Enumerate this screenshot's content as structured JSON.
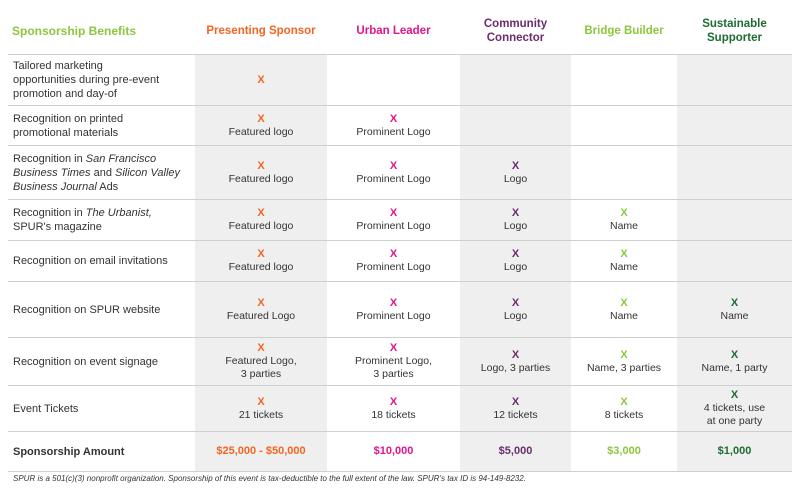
{
  "header": {
    "benefits": "Sponsorship Benefits",
    "presenting": "Presenting Sponsor",
    "urban": "Urban Leader",
    "community_line1": "Community",
    "community_line2": "Connector",
    "bridge": "Bridge Builder",
    "sustainable_line1": "Sustainable",
    "sustainable_line2": "Supporter"
  },
  "colors": {
    "benefits_header": "#8cc63f",
    "presenting": "#f26522",
    "urban": "#e0158a",
    "community": "#6b2c6e",
    "bridge": "#8cc63f",
    "sustainable": "#1e6b33",
    "shading": "#efefef"
  },
  "rows": {
    "marketing": {
      "line1": "Tailored marketing",
      "line2": "opportunities during pre-event",
      "line3": "promotion and day-of",
      "presenting_mark": "X"
    },
    "printed": {
      "line1": "Recognition on printed",
      "line2": "promotional materials",
      "presenting_mark": "X",
      "presenting_detail": "Featured logo",
      "urban_mark": "X",
      "urban_detail": "Prominent Logo"
    },
    "journal": {
      "line1_prefix": "Recognition in ",
      "line1_italic": "San Francisco",
      "line2_italic": "Business Times",
      "line2_suffix": " and ",
      "line2_italic2": "Silicon Valley",
      "line3_italic": "Business Journal",
      "line3_suffix": " Ads",
      "presenting_mark": "X",
      "presenting_detail": "Featured logo",
      "urban_mark": "X",
      "urban_detail": "Prominent Logo",
      "community_mark": "X",
      "community_detail": "Logo"
    },
    "urbanist": {
      "line1_prefix": "Recognition in ",
      "line1_italic": "The Urbanist,",
      "line2": "SPUR's magazine",
      "presenting_mark": "X",
      "presenting_detail": "Featured logo",
      "urban_mark": "X",
      "urban_detail": "Prominent Logo",
      "community_mark": "X",
      "community_detail": "Logo",
      "bridge_mark": "X",
      "bridge_detail": "Name"
    },
    "email": {
      "line1": "Recognition on email invitations",
      "presenting_mark": "X",
      "presenting_detail": "Featured logo",
      "urban_mark": "X",
      "urban_detail": "Prominent Logo",
      "community_mark": "X",
      "community_detail": "Logo",
      "bridge_mark": "X",
      "bridge_detail": "Name"
    },
    "website": {
      "line1": "Recognition on SPUR website",
      "presenting_mark": "X",
      "presenting_detail": "Featured Logo",
      "urban_mark": "X",
      "urban_detail": "Prominent Logo",
      "community_mark": "X",
      "community_detail": "Logo",
      "bridge_mark": "X",
      "bridge_detail": "Name",
      "sustainable_mark": "X",
      "sustainable_detail": "Name"
    },
    "signage": {
      "line1": "Recognition on event signage",
      "presenting_mark": "X",
      "presenting_detail1": "Featured Logo,",
      "presenting_detail2": "3 parties",
      "urban_mark": "X",
      "urban_detail1": "Prominent Logo,",
      "urban_detail2": "3 parties",
      "community_mark": "X",
      "community_detail": "Logo, 3 parties",
      "bridge_mark": "X",
      "bridge_detail": "Name, 3 parties",
      "sustainable_mark": "X",
      "sustainable_detail": "Name, 1 party"
    },
    "tickets": {
      "line1": "Event Tickets",
      "presenting_mark": "X",
      "presenting_detail": "21 tickets",
      "urban_mark": "X",
      "urban_detail": "18 tickets",
      "community_mark": "X",
      "community_detail": "12 tickets",
      "bridge_mark": "X",
      "bridge_detail": "8 tickets",
      "sustainable_mark": "X",
      "sustainable_detail1": "4 tickets, use",
      "sustainable_detail2": "at one party"
    },
    "amount": {
      "label": "Sponsorship Amount",
      "presenting": "$25,000 - $50,000",
      "urban": "$10,000",
      "community": "$5,000",
      "bridge": "$3,000",
      "sustainable": "$1,000"
    }
  },
  "footnote": "SPUR is a 501(c)(3) nonprofit organization. Sponsorship of this event is tax-deductible to the full extent of the law. SPUR's tax ID is 94-149-8232."
}
